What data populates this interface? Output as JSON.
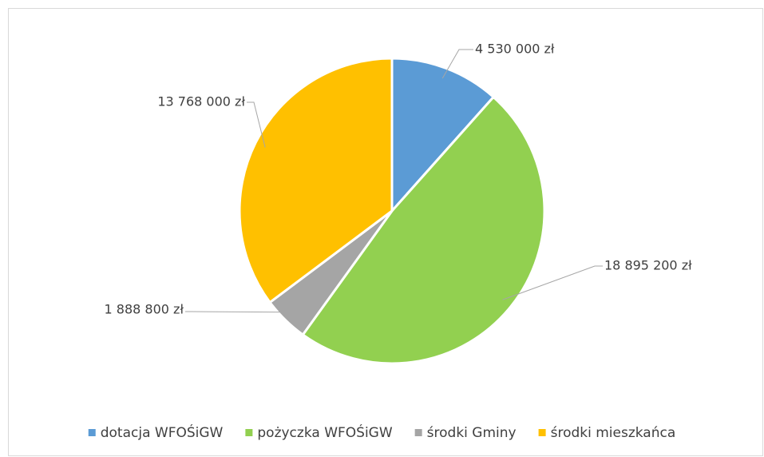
{
  "chart_data": {
    "type": "pie",
    "categories": [
      "dotacja WFOŚiGW",
      "pożyczka WFOŚiGW",
      "środki Gminy",
      "środki mieszkańca"
    ],
    "values": [
      4530000,
      18895200,
      1888800,
      13768000
    ],
    "value_labels": [
      "4 530 000 zł",
      "18 895 200 zł",
      "1 888 800 zł",
      "13 768 000 zł"
    ],
    "colors": [
      "#5b9bd5",
      "#92d050",
      "#a5a5a5",
      "#ffc000"
    ],
    "legend": "bottom"
  }
}
